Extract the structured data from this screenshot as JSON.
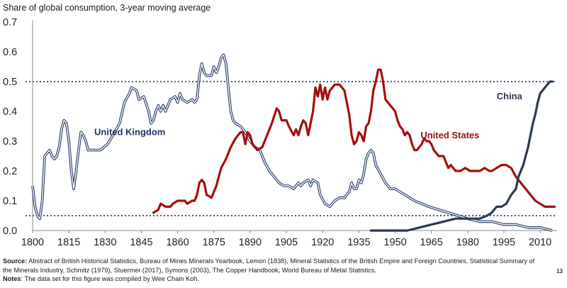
{
  "chart_data": {
    "type": "line",
    "title": "Share of global consumption, 3-year moving average",
    "xlabel": "",
    "ylabel": "",
    "xlim": [
      1800,
      2017
    ],
    "ylim": [
      0,
      0.7
    ],
    "x_ticks": [
      1800,
      1815,
      1830,
      1845,
      1860,
      1875,
      1890,
      1905,
      1920,
      1935,
      1950,
      1965,
      1980,
      1995,
      2010
    ],
    "y_ticks": [
      0.0,
      0.1,
      0.2,
      0.3,
      0.4,
      0.5,
      0.6,
      0.7
    ],
    "y_tick_labels": [
      "0.0",
      "0.1",
      "0.2",
      "0.3",
      "0.4",
      "0.5",
      "0.6",
      "0.7"
    ],
    "grid": false,
    "reference_lines": [
      0.5,
      0.05
    ],
    "series": [
      {
        "name": "United Kingdom",
        "color": "#1f3864",
        "style": "double",
        "points": [
          [
            1800,
            0.15
          ],
          [
            1801,
            0.08
          ],
          [
            1802,
            0.05
          ],
          [
            1803,
            0.04
          ],
          [
            1804,
            0.1
          ],
          [
            1805,
            0.25
          ],
          [
            1806,
            0.26
          ],
          [
            1807,
            0.27
          ],
          [
            1808,
            0.25
          ],
          [
            1809,
            0.24
          ],
          [
            1810,
            0.25
          ],
          [
            1811,
            0.28
          ],
          [
            1812,
            0.34
          ],
          [
            1813,
            0.37
          ],
          [
            1814,
            0.36
          ],
          [
            1815,
            0.3
          ],
          [
            1816,
            0.2
          ],
          [
            1817,
            0.14
          ],
          [
            1818,
            0.2
          ],
          [
            1819,
            0.27
          ],
          [
            1820,
            0.33
          ],
          [
            1821,
            0.32
          ],
          [
            1822,
            0.3
          ],
          [
            1823,
            0.27
          ],
          [
            1825,
            0.27
          ],
          [
            1828,
            0.27
          ],
          [
            1831,
            0.29
          ],
          [
            1834,
            0.33
          ],
          [
            1836,
            0.36
          ],
          [
            1838,
            0.43
          ],
          [
            1840,
            0.46
          ],
          [
            1841,
            0.48
          ],
          [
            1843,
            0.47
          ],
          [
            1844,
            0.44
          ],
          [
            1846,
            0.45
          ],
          [
            1848,
            0.4
          ],
          [
            1849,
            0.36
          ],
          [
            1850,
            0.37
          ],
          [
            1851,
            0.4
          ],
          [
            1852,
            0.42
          ],
          [
            1853,
            0.4
          ],
          [
            1854,
            0.42
          ],
          [
            1855,
            0.4
          ],
          [
            1857,
            0.44
          ],
          [
            1859,
            0.45
          ],
          [
            1860,
            0.43
          ],
          [
            1861,
            0.46
          ],
          [
            1862,
            0.44
          ],
          [
            1864,
            0.43
          ],
          [
            1866,
            0.44
          ],
          [
            1867,
            0.43
          ],
          [
            1868,
            0.44
          ],
          [
            1869,
            0.52
          ],
          [
            1870,
            0.56
          ],
          [
            1871,
            0.53
          ],
          [
            1872,
            0.52
          ],
          [
            1874,
            0.52
          ],
          [
            1875,
            0.55
          ],
          [
            1876,
            0.53
          ],
          [
            1877,
            0.55
          ],
          [
            1878,
            0.58
          ],
          [
            1879,
            0.59
          ],
          [
            1880,
            0.56
          ],
          [
            1881,
            0.48
          ],
          [
            1882,
            0.4
          ],
          [
            1883,
            0.37
          ],
          [
            1884,
            0.36
          ],
          [
            1886,
            0.35
          ],
          [
            1888,
            0.33
          ],
          [
            1890,
            0.3
          ],
          [
            1892,
            0.28
          ],
          [
            1894,
            0.27
          ],
          [
            1896,
            0.23
          ],
          [
            1898,
            0.2
          ],
          [
            1900,
            0.18
          ],
          [
            1902,
            0.16
          ],
          [
            1904,
            0.15
          ],
          [
            1906,
            0.15
          ],
          [
            1908,
            0.14
          ],
          [
            1910,
            0.16
          ],
          [
            1911,
            0.15
          ],
          [
            1912,
            0.16
          ],
          [
            1914,
            0.17
          ],
          [
            1915,
            0.15
          ],
          [
            1916,
            0.17
          ],
          [
            1918,
            0.16
          ],
          [
            1919,
            0.12
          ],
          [
            1921,
            0.09
          ],
          [
            1923,
            0.08
          ],
          [
            1925,
            0.1
          ],
          [
            1927,
            0.11
          ],
          [
            1929,
            0.11
          ],
          [
            1931,
            0.13
          ],
          [
            1932,
            0.16
          ],
          [
            1933,
            0.14
          ],
          [
            1934,
            0.14
          ],
          [
            1935,
            0.17
          ],
          [
            1936,
            0.16
          ],
          [
            1937,
            0.19
          ],
          [
            1938,
            0.24
          ],
          [
            1939,
            0.26
          ],
          [
            1940,
            0.27
          ],
          [
            1941,
            0.26
          ],
          [
            1942,
            0.22
          ],
          [
            1944,
            0.19
          ],
          [
            1946,
            0.16
          ],
          [
            1948,
            0.14
          ],
          [
            1950,
            0.14
          ],
          [
            1952,
            0.13
          ],
          [
            1954,
            0.12
          ],
          [
            1956,
            0.11
          ],
          [
            1958,
            0.1
          ],
          [
            1961,
            0.09
          ],
          [
            1964,
            0.08
          ],
          [
            1968,
            0.07
          ],
          [
            1972,
            0.06
          ],
          [
            1976,
            0.05
          ],
          [
            1980,
            0.04
          ],
          [
            1985,
            0.03
          ],
          [
            1990,
            0.03
          ],
          [
            1995,
            0.02
          ],
          [
            2000,
            0.02
          ],
          [
            2005,
            0.01
          ],
          [
            2010,
            0.01
          ],
          [
            2015,
            0.0
          ]
        ]
      },
      {
        "name": "United States",
        "color": "#a50f0f",
        "style": "solid",
        "points": [
          [
            1850,
            0.06
          ],
          [
            1852,
            0.07
          ],
          [
            1853,
            0.09
          ],
          [
            1855,
            0.08
          ],
          [
            1857,
            0.08
          ],
          [
            1858,
            0.09
          ],
          [
            1860,
            0.1
          ],
          [
            1862,
            0.1
          ],
          [
            1863,
            0.1
          ],
          [
            1864,
            0.09
          ],
          [
            1866,
            0.1
          ],
          [
            1867,
            0.1
          ],
          [
            1868,
            0.12
          ],
          [
            1869,
            0.16
          ],
          [
            1870,
            0.17
          ],
          [
            1871,
            0.16
          ],
          [
            1872,
            0.12
          ],
          [
            1874,
            0.11
          ],
          [
            1876,
            0.15
          ],
          [
            1878,
            0.21
          ],
          [
            1880,
            0.24
          ],
          [
            1882,
            0.28
          ],
          [
            1884,
            0.31
          ],
          [
            1886,
            0.33
          ],
          [
            1887,
            0.33
          ],
          [
            1888,
            0.29
          ],
          [
            1889,
            0.33
          ],
          [
            1890,
            0.32
          ],
          [
            1891,
            0.29
          ],
          [
            1893,
            0.27
          ],
          [
            1895,
            0.28
          ],
          [
            1897,
            0.32
          ],
          [
            1899,
            0.36
          ],
          [
            1901,
            0.41
          ],
          [
            1902,
            0.4
          ],
          [
            1903,
            0.37
          ],
          [
            1905,
            0.37
          ],
          [
            1906,
            0.35
          ],
          [
            1908,
            0.32
          ],
          [
            1909,
            0.34
          ],
          [
            1910,
            0.32
          ],
          [
            1911,
            0.35
          ],
          [
            1912,
            0.37
          ],
          [
            1913,
            0.36
          ],
          [
            1914,
            0.32
          ],
          [
            1916,
            0.4
          ],
          [
            1917,
            0.48
          ],
          [
            1918,
            0.45
          ],
          [
            1919,
            0.49
          ],
          [
            1920,
            0.44
          ],
          [
            1921,
            0.48
          ],
          [
            1922,
            0.44
          ],
          [
            1923,
            0.47
          ],
          [
            1924,
            0.48
          ],
          [
            1925,
            0.49
          ],
          [
            1927,
            0.49
          ],
          [
            1929,
            0.47
          ],
          [
            1930,
            0.43
          ],
          [
            1931,
            0.39
          ],
          [
            1932,
            0.32
          ],
          [
            1933,
            0.29
          ],
          [
            1934,
            0.3
          ],
          [
            1935,
            0.33
          ],
          [
            1936,
            0.32
          ],
          [
            1937,
            0.3
          ],
          [
            1938,
            0.35
          ],
          [
            1939,
            0.36
          ],
          [
            1940,
            0.4
          ],
          [
            1941,
            0.47
          ],
          [
            1942,
            0.5
          ],
          [
            1943,
            0.54
          ],
          [
            1944,
            0.54
          ],
          [
            1945,
            0.5
          ],
          [
            1946,
            0.44
          ],
          [
            1948,
            0.42
          ],
          [
            1949,
            0.41
          ],
          [
            1950,
            0.4
          ],
          [
            1951,
            0.37
          ],
          [
            1952,
            0.35
          ],
          [
            1953,
            0.34
          ],
          [
            1954,
            0.32
          ],
          [
            1955,
            0.33
          ],
          [
            1956,
            0.32
          ],
          [
            1957,
            0.29
          ],
          [
            1958,
            0.27
          ],
          [
            1959,
            0.27
          ],
          [
            1960,
            0.28
          ],
          [
            1961,
            0.29
          ],
          [
            1962,
            0.31
          ],
          [
            1963,
            0.3
          ],
          [
            1964,
            0.3
          ],
          [
            1965,
            0.29
          ],
          [
            1966,
            0.27
          ],
          [
            1967,
            0.26
          ],
          [
            1968,
            0.25
          ],
          [
            1970,
            0.25
          ],
          [
            1971,
            0.23
          ],
          [
            1972,
            0.21
          ],
          [
            1973,
            0.22
          ],
          [
            1974,
            0.21
          ],
          [
            1975,
            0.2
          ],
          [
            1977,
            0.2
          ],
          [
            1979,
            0.21
          ],
          [
            1981,
            0.2
          ],
          [
            1983,
            0.2
          ],
          [
            1985,
            0.2
          ],
          [
            1987,
            0.21
          ],
          [
            1989,
            0.2
          ],
          [
            1990,
            0.2
          ],
          [
            1992,
            0.21
          ],
          [
            1994,
            0.22
          ],
          [
            1996,
            0.22
          ],
          [
            1998,
            0.21
          ],
          [
            2000,
            0.18
          ],
          [
            2002,
            0.16
          ],
          [
            2004,
            0.14
          ],
          [
            2006,
            0.12
          ],
          [
            2008,
            0.1
          ],
          [
            2010,
            0.09
          ],
          [
            2012,
            0.08
          ],
          [
            2014,
            0.08
          ],
          [
            2016,
            0.08
          ]
        ]
      },
      {
        "name": "China",
        "color": "#2b3a4e",
        "style": "solid",
        "points": [
          [
            1940,
            0.0
          ],
          [
            1945,
            0.0
          ],
          [
            1950,
            0.0
          ],
          [
            1955,
            0.0
          ],
          [
            1960,
            0.01
          ],
          [
            1965,
            0.02
          ],
          [
            1970,
            0.03
          ],
          [
            1975,
            0.04
          ],
          [
            1980,
            0.04
          ],
          [
            1985,
            0.04
          ],
          [
            1988,
            0.05
          ],
          [
            1990,
            0.06
          ],
          [
            1992,
            0.08
          ],
          [
            1994,
            0.08
          ],
          [
            1996,
            0.09
          ],
          [
            1998,
            0.12
          ],
          [
            2000,
            0.14
          ],
          [
            2001,
            0.18
          ],
          [
            2003,
            0.22
          ],
          [
            2004,
            0.25
          ],
          [
            2005,
            0.28
          ],
          [
            2006,
            0.32
          ],
          [
            2007,
            0.36
          ],
          [
            2008,
            0.39
          ],
          [
            2009,
            0.43
          ],
          [
            2010,
            0.46
          ],
          [
            2011,
            0.47
          ],
          [
            2012,
            0.48
          ],
          [
            2013,
            0.49
          ],
          [
            2014,
            0.5
          ],
          [
            2015,
            0.5
          ]
        ]
      }
    ]
  },
  "footnotes": {
    "source_label": "Source:",
    "source_text": " Abstract of British Historical Statistics, Bureau of Mines Minerals Yearbook, Lemon (1838), Mineral Statistics of the British Empire and Foreign Countries, Statistical Summary of the Minerals Industry, Schmitz (1979), Stuermer (2017), Symons (2003), The Copper Handbook, World Bureau of Metal Statistics.",
    "notes_label": "Notes",
    "notes_text": ": The data set for this figure was compiled by Wee Chain Koh."
  },
  "page_number": "13"
}
